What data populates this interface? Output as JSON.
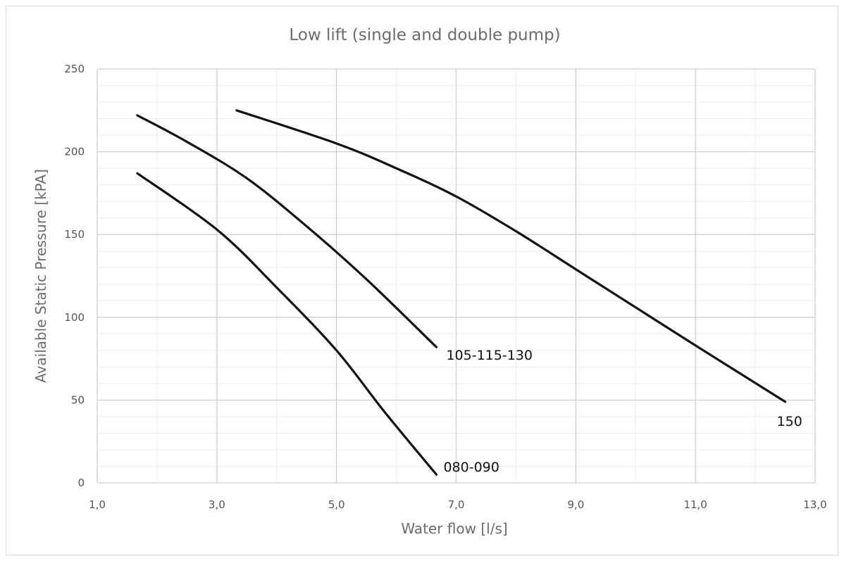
{
  "chart_data": {
    "type": "line",
    "title": "Low lift (single and double pump)",
    "xlabel": "Water flow [l/s]",
    "ylabel": "Available Static Pressure [kPA]",
    "xlim": [
      1.0,
      13.0
    ],
    "ylim": [
      0,
      250
    ],
    "x_ticks": [
      "1,0",
      "3,0",
      "5,0",
      "7,0",
      "9,0",
      "11,0",
      "13,0"
    ],
    "y_ticks": [
      "0",
      "50",
      "100",
      "150",
      "200",
      "250"
    ],
    "grid": true,
    "series": [
      {
        "name": "080-090",
        "points": [
          [
            1.67,
            187
          ],
          [
            3.0,
            153
          ],
          [
            4.0,
            118
          ],
          [
            5.0,
            80
          ],
          [
            5.8,
            43
          ],
          [
            6.67,
            5
          ]
        ]
      },
      {
        "name": "105-115-130",
        "points": [
          [
            1.67,
            222
          ],
          [
            2.5,
            206
          ],
          [
            3.5,
            184
          ],
          [
            4.5,
            155
          ],
          [
            5.5,
            123
          ],
          [
            6.67,
            82
          ]
        ]
      },
      {
        "name": "150",
        "points": [
          [
            3.33,
            225
          ],
          [
            5.0,
            205
          ],
          [
            6.0,
            190
          ],
          [
            7.0,
            173
          ],
          [
            8.0,
            152
          ],
          [
            9.0,
            129
          ],
          [
            10.0,
            106
          ],
          [
            11.0,
            83
          ],
          [
            12.5,
            49
          ]
        ]
      }
    ]
  }
}
